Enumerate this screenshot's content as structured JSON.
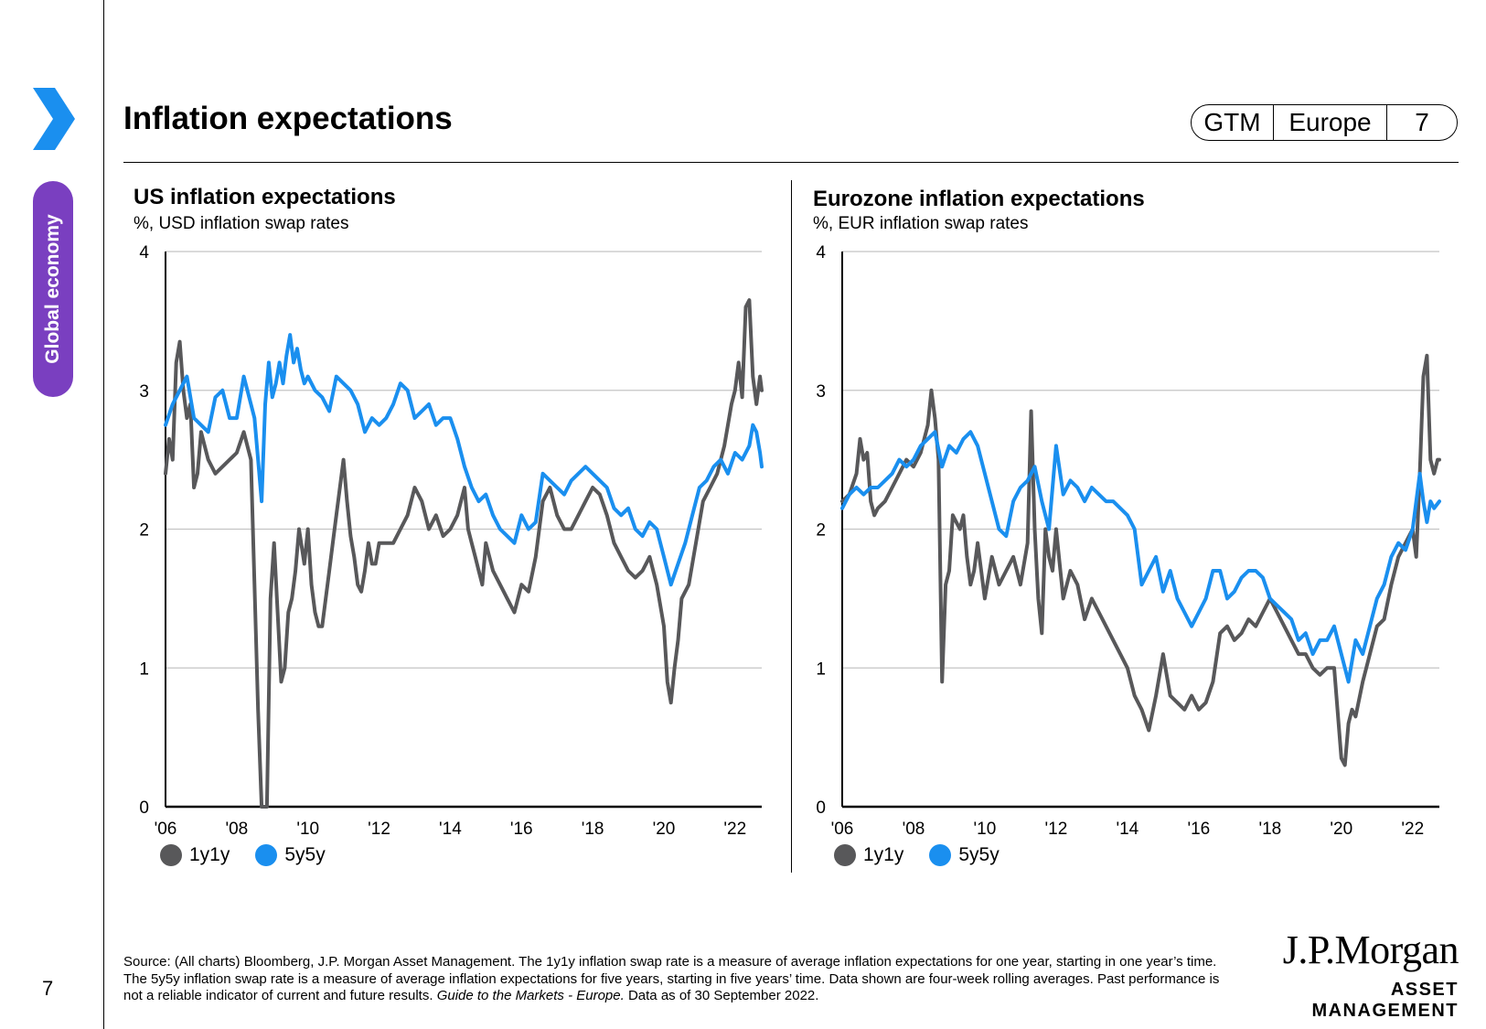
{
  "header": {
    "title": "Inflation expectations",
    "tag_gtm": "GTM",
    "tag_region": "Europe",
    "tag_page": "7"
  },
  "sidebar": {
    "section_label": "Global economy",
    "page_number": "7",
    "chevron_color": "#1a8fef",
    "pill_color": "#7a3fc0"
  },
  "colors": {
    "series_1y1y": "#58585a",
    "series_5y5y": "#1a8fef"
  },
  "chart_data": [
    {
      "type": "line",
      "title": "US inflation expectations",
      "subtitle": "%, USD inflation swap rates",
      "xlabel": "",
      "ylabel": "",
      "xlim": [
        2006.0,
        2022.75
      ],
      "ylim": [
        0,
        4
      ],
      "x_ticks": [
        "'06",
        "'08",
        "'10",
        "'12",
        "'14",
        "'16",
        "'18",
        "'20",
        "'22"
      ],
      "y_ticks": [
        "0",
        "1",
        "2",
        "3",
        "4"
      ],
      "grid": true,
      "legend": "bottom-left",
      "series": [
        {
          "name": "1y1y",
          "x": [
            2006.0,
            2006.1,
            2006.2,
            2006.3,
            2006.4,
            2006.5,
            2006.6,
            2006.7,
            2006.8,
            2006.9,
            2007.0,
            2007.2,
            2007.4,
            2007.6,
            2007.8,
            2008.0,
            2008.2,
            2008.4,
            2008.5,
            2008.6,
            2008.7,
            2008.8,
            2008.85,
            2008.95,
            2009.05,
            2009.15,
            2009.25,
            2009.35,
            2009.45,
            2009.55,
            2009.65,
            2009.75,
            2009.9,
            2010.0,
            2010.1,
            2010.2,
            2010.3,
            2010.4,
            2010.5,
            2010.6,
            2010.7,
            2010.8,
            2010.9,
            2011.0,
            2011.1,
            2011.2,
            2011.3,
            2011.4,
            2011.5,
            2011.6,
            2011.7,
            2011.8,
            2011.9,
            2012.0,
            2012.2,
            2012.4,
            2012.6,
            2012.8,
            2013.0,
            2013.2,
            2013.4,
            2013.6,
            2013.8,
            2014.0,
            2014.2,
            2014.4,
            2014.5,
            2014.6,
            2014.7,
            2014.8,
            2014.9,
            2015.0,
            2015.2,
            2015.4,
            2015.6,
            2015.8,
            2016.0,
            2016.2,
            2016.4,
            2016.6,
            2016.8,
            2017.0,
            2017.2,
            2017.4,
            2017.6,
            2017.8,
            2018.0,
            2018.2,
            2018.4,
            2018.6,
            2018.8,
            2019.0,
            2019.2,
            2019.4,
            2019.6,
            2019.8,
            2020.0,
            2020.1,
            2020.2,
            2020.3,
            2020.4,
            2020.5,
            2020.7,
            2020.9,
            2021.1,
            2021.3,
            2021.5,
            2021.7,
            2021.9,
            2022.0,
            2022.1,
            2022.2,
            2022.3,
            2022.4,
            2022.5,
            2022.6,
            2022.7,
            2022.75
          ],
          "values": [
            2.4,
            2.65,
            2.5,
            3.2,
            3.35,
            3.0,
            2.8,
            2.9,
            2.3,
            2.4,
            2.7,
            2.5,
            2.4,
            2.45,
            2.5,
            2.55,
            2.7,
            2.5,
            1.6,
            0.7,
            0.0,
            0.0,
            0.0,
            1.5,
            1.9,
            1.4,
            0.9,
            1.0,
            1.4,
            1.5,
            1.7,
            2.0,
            1.75,
            2.0,
            1.6,
            1.4,
            1.3,
            1.3,
            1.5,
            1.7,
            1.9,
            2.1,
            2.3,
            2.5,
            2.2,
            1.95,
            1.8,
            1.6,
            1.55,
            1.7,
            1.9,
            1.75,
            1.75,
            1.9,
            1.9,
            1.9,
            2.0,
            2.1,
            2.3,
            2.2,
            2.0,
            2.1,
            1.95,
            2.0,
            2.1,
            2.3,
            2.0,
            1.9,
            1.8,
            1.7,
            1.6,
            1.9,
            1.7,
            1.6,
            1.5,
            1.4,
            1.6,
            1.55,
            1.8,
            2.2,
            2.3,
            2.1,
            2.0,
            2.0,
            2.1,
            2.2,
            2.3,
            2.25,
            2.1,
            1.9,
            1.8,
            1.7,
            1.65,
            1.7,
            1.8,
            1.6,
            1.3,
            0.9,
            0.75,
            1.0,
            1.2,
            1.5,
            1.6,
            1.9,
            2.2,
            2.3,
            2.4,
            2.6,
            2.9,
            3.0,
            3.2,
            2.95,
            3.6,
            3.65,
            3.1,
            2.9,
            3.1,
            3.0
          ]
        },
        {
          "name": "5y5y",
          "x": [
            2006.0,
            2006.2,
            2006.4,
            2006.6,
            2006.8,
            2007.0,
            2007.2,
            2007.4,
            2007.6,
            2007.8,
            2008.0,
            2008.2,
            2008.4,
            2008.5,
            2008.6,
            2008.7,
            2008.8,
            2008.9,
            2009.0,
            2009.1,
            2009.2,
            2009.3,
            2009.4,
            2009.5,
            2009.6,
            2009.7,
            2009.8,
            2009.9,
            2010.0,
            2010.2,
            2010.4,
            2010.6,
            2010.8,
            2011.0,
            2011.2,
            2011.4,
            2011.6,
            2011.8,
            2012.0,
            2012.2,
            2012.4,
            2012.6,
            2012.8,
            2013.0,
            2013.2,
            2013.4,
            2013.6,
            2013.8,
            2014.0,
            2014.2,
            2014.4,
            2014.6,
            2014.8,
            2015.0,
            2015.2,
            2015.4,
            2015.6,
            2015.8,
            2016.0,
            2016.2,
            2016.4,
            2016.6,
            2016.8,
            2017.0,
            2017.2,
            2017.4,
            2017.6,
            2017.8,
            2018.0,
            2018.2,
            2018.4,
            2018.6,
            2018.8,
            2019.0,
            2019.2,
            2019.4,
            2019.6,
            2019.8,
            2020.0,
            2020.2,
            2020.4,
            2020.6,
            2020.8,
            2021.0,
            2021.2,
            2021.4,
            2021.6,
            2021.8,
            2022.0,
            2022.2,
            2022.4,
            2022.5,
            2022.6,
            2022.7,
            2022.75
          ],
          "values": [
            2.75,
            2.9,
            3.0,
            3.1,
            2.8,
            2.75,
            2.7,
            2.95,
            3.0,
            2.8,
            2.8,
            3.1,
            2.9,
            2.8,
            2.5,
            2.2,
            2.9,
            3.2,
            2.95,
            3.05,
            3.2,
            3.05,
            3.25,
            3.4,
            3.2,
            3.3,
            3.15,
            3.05,
            3.1,
            3.0,
            2.95,
            2.85,
            3.1,
            3.05,
            3.0,
            2.9,
            2.7,
            2.8,
            2.75,
            2.8,
            2.9,
            3.05,
            3.0,
            2.8,
            2.85,
            2.9,
            2.75,
            2.8,
            2.8,
            2.65,
            2.45,
            2.3,
            2.2,
            2.25,
            2.1,
            2.0,
            1.95,
            1.9,
            2.1,
            2.0,
            2.05,
            2.4,
            2.35,
            2.3,
            2.25,
            2.35,
            2.4,
            2.45,
            2.4,
            2.35,
            2.3,
            2.15,
            2.1,
            2.15,
            2.0,
            1.95,
            2.05,
            2.0,
            1.8,
            1.6,
            1.75,
            1.9,
            2.1,
            2.3,
            2.35,
            2.45,
            2.5,
            2.4,
            2.55,
            2.5,
            2.6,
            2.75,
            2.7,
            2.55,
            2.45
          ]
        }
      ]
    },
    {
      "type": "line",
      "title": "Eurozone inflation expectations",
      "subtitle": "%, EUR inflation swap rates",
      "xlabel": "",
      "ylabel": "",
      "xlim": [
        2006.0,
        2022.75
      ],
      "ylim": [
        0,
        4
      ],
      "x_ticks": [
        "'06",
        "'08",
        "'10",
        "'12",
        "'14",
        "'16",
        "'18",
        "'20",
        "'22"
      ],
      "y_ticks": [
        "0",
        "1",
        "2",
        "3",
        "4"
      ],
      "grid": true,
      "legend": "bottom-left",
      "series": [
        {
          "name": "1y1y",
          "x": [
            2006.0,
            2006.2,
            2006.4,
            2006.5,
            2006.6,
            2006.7,
            2006.8,
            2006.9,
            2007.0,
            2007.2,
            2007.4,
            2007.6,
            2007.8,
            2008.0,
            2008.2,
            2008.4,
            2008.5,
            2008.6,
            2008.7,
            2008.8,
            2008.9,
            2009.0,
            2009.1,
            2009.2,
            2009.3,
            2009.4,
            2009.5,
            2009.6,
            2009.7,
            2009.8,
            2009.9,
            2010.0,
            2010.2,
            2010.4,
            2010.6,
            2010.8,
            2011.0,
            2011.2,
            2011.3,
            2011.4,
            2011.5,
            2011.6,
            2011.7,
            2011.8,
            2011.9,
            2012.0,
            2012.2,
            2012.4,
            2012.6,
            2012.8,
            2013.0,
            2013.2,
            2013.4,
            2013.6,
            2013.8,
            2014.0,
            2014.2,
            2014.4,
            2014.6,
            2014.8,
            2015.0,
            2015.2,
            2015.4,
            2015.6,
            2015.8,
            2016.0,
            2016.2,
            2016.4,
            2016.6,
            2016.8,
            2017.0,
            2017.2,
            2017.4,
            2017.6,
            2017.8,
            2018.0,
            2018.2,
            2018.4,
            2018.6,
            2018.8,
            2019.0,
            2019.2,
            2019.4,
            2019.6,
            2019.8,
            2020.0,
            2020.1,
            2020.2,
            2020.3,
            2020.4,
            2020.6,
            2020.8,
            2021.0,
            2021.2,
            2021.4,
            2021.6,
            2021.8,
            2022.0,
            2022.1,
            2022.2,
            2022.3,
            2022.4,
            2022.5,
            2022.6,
            2022.7,
            2022.75
          ],
          "values": [
            2.2,
            2.25,
            2.4,
            2.65,
            2.5,
            2.55,
            2.2,
            2.1,
            2.15,
            2.2,
            2.3,
            2.4,
            2.5,
            2.45,
            2.55,
            2.75,
            3.0,
            2.8,
            2.5,
            0.9,
            1.6,
            1.7,
            2.1,
            2.05,
            2.0,
            2.1,
            1.8,
            1.6,
            1.7,
            1.9,
            1.7,
            1.5,
            1.8,
            1.6,
            1.7,
            1.8,
            1.6,
            1.9,
            2.85,
            2.0,
            1.5,
            1.25,
            2.0,
            1.8,
            1.7,
            2.0,
            1.5,
            1.7,
            1.6,
            1.35,
            1.5,
            1.4,
            1.3,
            1.2,
            1.1,
            1.0,
            0.8,
            0.7,
            0.55,
            0.8,
            1.1,
            0.8,
            0.75,
            0.7,
            0.8,
            0.7,
            0.75,
            0.9,
            1.25,
            1.3,
            1.2,
            1.25,
            1.35,
            1.3,
            1.4,
            1.5,
            1.4,
            1.3,
            1.2,
            1.1,
            1.1,
            1.0,
            0.95,
            1.0,
            1.0,
            0.35,
            0.3,
            0.6,
            0.7,
            0.65,
            0.9,
            1.1,
            1.3,
            1.35,
            1.6,
            1.8,
            1.9,
            2.0,
            1.8,
            2.4,
            3.1,
            3.25,
            2.5,
            2.4,
            2.5,
            2.5
          ]
        },
        {
          "name": "5y5y",
          "x": [
            2006.0,
            2006.2,
            2006.4,
            2006.6,
            2006.8,
            2007.0,
            2007.2,
            2007.4,
            2007.6,
            2007.8,
            2008.0,
            2008.2,
            2008.4,
            2008.6,
            2008.8,
            2009.0,
            2009.2,
            2009.4,
            2009.6,
            2009.8,
            2010.0,
            2010.2,
            2010.4,
            2010.6,
            2010.8,
            2011.0,
            2011.2,
            2011.4,
            2011.6,
            2011.8,
            2012.0,
            2012.2,
            2012.4,
            2012.6,
            2012.8,
            2013.0,
            2013.2,
            2013.4,
            2013.6,
            2013.8,
            2014.0,
            2014.2,
            2014.4,
            2014.6,
            2014.8,
            2015.0,
            2015.2,
            2015.4,
            2015.6,
            2015.8,
            2016.0,
            2016.2,
            2016.4,
            2016.6,
            2016.8,
            2017.0,
            2017.2,
            2017.4,
            2017.6,
            2017.8,
            2018.0,
            2018.2,
            2018.4,
            2018.6,
            2018.8,
            2019.0,
            2019.2,
            2019.4,
            2019.6,
            2019.8,
            2020.0,
            2020.2,
            2020.4,
            2020.6,
            2020.8,
            2021.0,
            2021.2,
            2021.4,
            2021.6,
            2021.8,
            2022.0,
            2022.2,
            2022.3,
            2022.4,
            2022.5,
            2022.6,
            2022.75
          ],
          "values": [
            2.15,
            2.25,
            2.3,
            2.25,
            2.3,
            2.3,
            2.35,
            2.4,
            2.5,
            2.45,
            2.5,
            2.6,
            2.65,
            2.7,
            2.45,
            2.6,
            2.55,
            2.65,
            2.7,
            2.6,
            2.4,
            2.2,
            2.0,
            1.95,
            2.2,
            2.3,
            2.35,
            2.45,
            2.2,
            2.0,
            2.6,
            2.25,
            2.35,
            2.3,
            2.2,
            2.3,
            2.25,
            2.2,
            2.2,
            2.15,
            2.1,
            2.0,
            1.6,
            1.7,
            1.8,
            1.55,
            1.7,
            1.5,
            1.4,
            1.3,
            1.4,
            1.5,
            1.7,
            1.7,
            1.5,
            1.55,
            1.65,
            1.7,
            1.7,
            1.65,
            1.5,
            1.45,
            1.4,
            1.35,
            1.2,
            1.25,
            1.1,
            1.2,
            1.2,
            1.3,
            1.1,
            0.9,
            1.2,
            1.1,
            1.3,
            1.5,
            1.6,
            1.8,
            1.9,
            1.85,
            2.0,
            2.4,
            2.2,
            2.05,
            2.2,
            2.15,
            2.2
          ]
        }
      ]
    }
  ],
  "footer": {
    "source_text": "Source: (All charts) Bloomberg, J.P. Morgan Asset Management. The 1y1y inflation swap rate is a measure of average inflation expectations for one year, starting in one year’s time. The 5y5y inflation swap rate is a measure of average inflation expectations for five years, starting in five years’ time. Data shown are four-week rolling averages. Past performance is not a reliable indicator of current and future results. ",
    "source_italic": "Guide to the Markets - Europe.",
    "source_tail": " Data as of 30 September 2022.",
    "logo_line1": "J.P.Morgan",
    "logo_line2": "ASSET MANAGEMENT"
  }
}
